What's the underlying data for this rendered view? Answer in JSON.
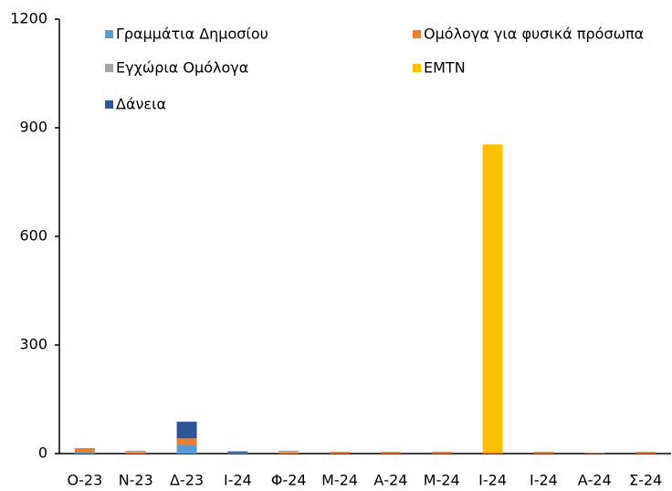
{
  "chart_data": {
    "type": "stacked_bar",
    "categories": [
      "Ο-23",
      "Ν-23",
      "Δ-23",
      "Ι-24",
      "Φ-24",
      "Μ-24",
      "Α-24",
      "Μ-24",
      "Ι-24",
      "Ι-24",
      "Α-24",
      "Σ-24"
    ],
    "series": [
      {
        "name": "Γραμμάτια Δημοσίου",
        "color": "#5b9bd5",
        "values": [
          5,
          0,
          25,
          2,
          0,
          0,
          0,
          0,
          0,
          0,
          0,
          0
        ]
      },
      {
        "name": "Ομόλογα για φυσικά πρόσωπα",
        "color": "#ed7d31",
        "values": [
          10,
          4,
          17,
          0,
          3,
          5,
          5,
          5,
          4,
          5,
          1,
          5
        ]
      },
      {
        "name": "Εγχώρια Ομόλογα",
        "color": "#a5a5a5",
        "values": [
          0,
          4,
          0,
          0,
          5,
          0,
          0,
          0,
          0,
          0,
          0,
          0
        ]
      },
      {
        "name": "EMTN",
        "color": "#ffc000",
        "values": [
          0,
          0,
          0,
          0,
          0,
          0,
          0,
          0,
          850,
          0,
          0,
          0
        ]
      },
      {
        "name": "Δάνεια",
        "color": "#2f5597",
        "values": [
          0,
          0,
          46,
          4,
          0,
          0,
          0,
          0,
          0,
          0,
          0,
          0
        ]
      }
    ],
    "ylim": [
      0,
      1200
    ],
    "yticks": [
      0,
      300,
      600,
      900,
      1200
    ],
    "grid": false,
    "legend": "top"
  }
}
